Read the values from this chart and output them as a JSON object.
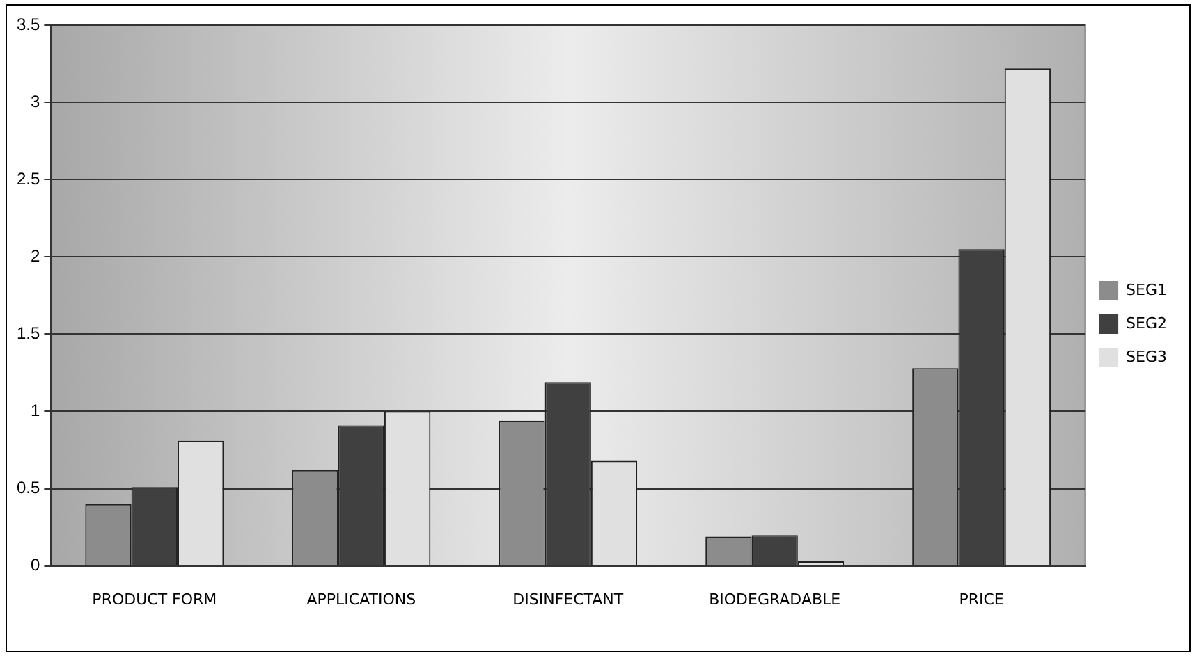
{
  "chart_data": {
    "type": "bar",
    "categories": [
      "PRODUCT FORM",
      "APPLICATIONS",
      "DISINFECTANT",
      "BIODEGRADABLE",
      "PRICE"
    ],
    "series": [
      {
        "name": "SEG1",
        "color": "#8c8c8c",
        "values": [
          0.4,
          0.62,
          0.94,
          0.19,
          1.28
        ]
      },
      {
        "name": "SEG2",
        "color": "#404040",
        "values": [
          0.51,
          0.91,
          1.19,
          0.2,
          2.05
        ]
      },
      {
        "name": "SEG3",
        "color": "#e0e0e0",
        "values": [
          0.81,
          1.0,
          0.68,
          0.03,
          3.22
        ]
      }
    ],
    "ylim": [
      0,
      3.5
    ],
    "yticks": [
      0,
      0.5,
      1,
      1.5,
      2,
      2.5,
      3,
      3.5
    ],
    "grid": "y",
    "legend": "right"
  }
}
